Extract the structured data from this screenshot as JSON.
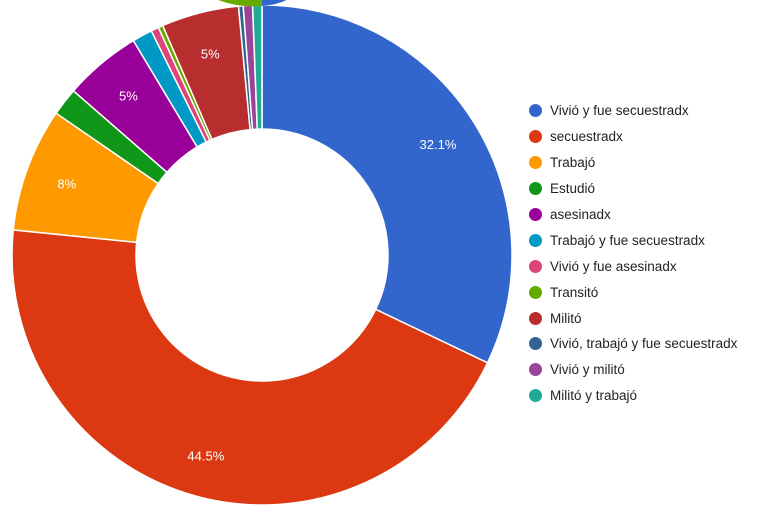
{
  "chart_data": {
    "type": "pie",
    "donut": true,
    "legend_position": "right",
    "series": [
      {
        "name": "Vivió y fue secuestradx",
        "value": 32.1,
        "color": "#3366cc",
        "label": "32.1%"
      },
      {
        "name": "secuestradx",
        "value": 44.5,
        "color": "#dc3912",
        "label": "44.5%"
      },
      {
        "name": "Trabajó",
        "value": 8.0,
        "color": "#ff9900",
        "label": "8%"
      },
      {
        "name": "Estudió",
        "value": 1.8,
        "color": "#109618",
        "label": ""
      },
      {
        "name": "asesinadx",
        "value": 5.0,
        "color": "#990099",
        "label": "5%"
      },
      {
        "name": "Trabajó y fue secuestradx",
        "value": 1.3,
        "color": "#0099c6",
        "label": ""
      },
      {
        "name": "Vivió y fue asesinadx",
        "value": 0.5,
        "color": "#dd4477",
        "label": ""
      },
      {
        "name": "Transitó",
        "value": 0.3,
        "color": "#66aa00",
        "label": ""
      },
      {
        "name": "Militó",
        "value": 5.0,
        "color": "#b82e2e",
        "label": "5%"
      },
      {
        "name": "Vivió, trabajó y fue secuestradx",
        "value": 0.3,
        "color": "#316395",
        "label": ""
      },
      {
        "name": "Vivió y militó",
        "value": 0.6,
        "color": "#994499",
        "label": ""
      },
      {
        "name": "Militó y trabajó",
        "value": 0.6,
        "color": "#22aa99",
        "label": ""
      }
    ]
  }
}
